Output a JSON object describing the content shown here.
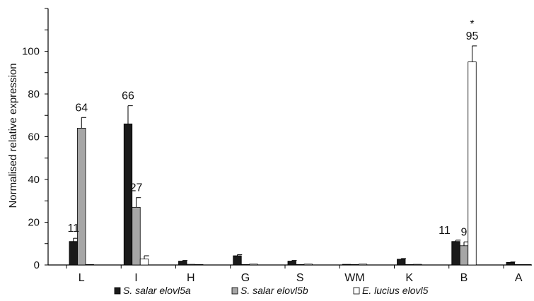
{
  "chart_data": {
    "type": "bar",
    "title": "",
    "xlabel": "",
    "ylabel": "Normalised relative expression",
    "ylim": [
      0,
      120
    ],
    "yticks": [
      0,
      20,
      40,
      60,
      80,
      100
    ],
    "grid": false,
    "legend_position": "bottom",
    "categories": [
      "L",
      "I",
      "H",
      "G",
      "S",
      "WM",
      "K",
      "B",
      "A"
    ],
    "series": [
      {
        "name": "S. salar elovl5a",
        "color": "#1a1a1a",
        "values": [
          11,
          66,
          1.8,
          4.3,
          1.8,
          0.3,
          2.7,
          11,
          1.2
        ],
        "errors": [
          1.5,
          8.5,
          0.3,
          0.5,
          0.3,
          0.1,
          0.3,
          0.6,
          0.2
        ],
        "labels": [
          "11",
          "66",
          "",
          "",
          "",
          "",
          "",
          "11",
          ""
        ]
      },
      {
        "name": "S. salar elovl5b",
        "color": "#a6a6a6",
        "values": [
          64,
          27,
          0.3,
          0.2,
          0.2,
          0.2,
          0.2,
          9,
          0.2
        ],
        "errors": [
          5,
          4.5,
          0.1,
          0.1,
          0.1,
          0.1,
          0.1,
          1.8,
          0.1
        ],
        "labels": [
          "64",
          "27",
          "",
          "",
          "",
          "",
          "",
          "9",
          ""
        ]
      },
      {
        "name": "E. lucius elovl5",
        "color": "#ffffff",
        "values": [
          0.2,
          2.8,
          0.2,
          0.4,
          0.4,
          0.4,
          0.3,
          95,
          0.2
        ],
        "errors": [
          0.1,
          1.5,
          0.1,
          0.1,
          0.1,
          0.1,
          0.1,
          7.5,
          0.1
        ],
        "labels": [
          "",
          "",
          "",
          "",
          "",
          "",
          "",
          "95",
          ""
        ]
      }
    ],
    "annotations": [
      {
        "text": "*",
        "category": "B",
        "series": 2
      }
    ]
  }
}
